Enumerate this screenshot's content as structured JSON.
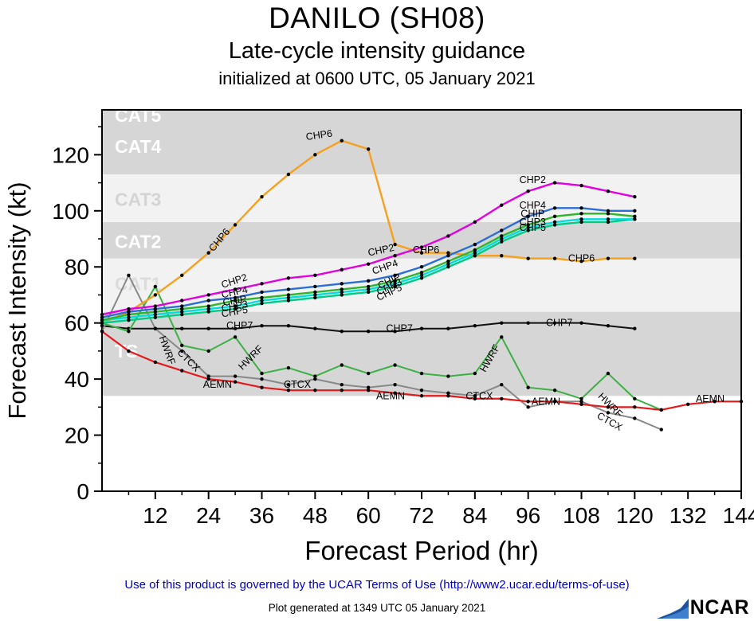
{
  "chart_data": {
    "type": "line",
    "title": "DANILO (SH08)",
    "subtitle": "Late-cycle intensity guidance",
    "init_line": "initialized at 0600 UTC, 05 January 2021",
    "xlabel": "Forecast Period (hr)",
    "ylabel": "Forecast Intensity (kt)",
    "xlim": [
      0,
      144
    ],
    "ylim": [
      0,
      136
    ],
    "xticks": [
      12,
      24,
      36,
      48,
      60,
      72,
      84,
      96,
      108,
      120,
      132,
      144
    ],
    "yticks": [
      0,
      20,
      40,
      60,
      80,
      100,
      120
    ],
    "x_minor_step": 6,
    "y_minor_step": 10,
    "legend": "none",
    "grid": false,
    "bands": [
      {
        "label": "TS",
        "from": 34,
        "to": 64,
        "fill": "#d6d6d6",
        "label_color": "#ffffff",
        "label_y": 50
      },
      {
        "label": "CAT1",
        "from": 64,
        "to": 83,
        "fill": "#f2f2f2",
        "label_color": "#dcdcdc",
        "label_y": 74
      },
      {
        "label": "CAT2",
        "from": 83,
        "to": 96,
        "fill": "#d6d6d6",
        "label_color": "#ffffff",
        "label_y": 89
      },
      {
        "label": "CAT3",
        "from": 96,
        "to": 113,
        "fill": "#f2f2f2",
        "label_color": "#d4d4d4",
        "label_y": 104
      },
      {
        "label": "CAT4",
        "from": 113,
        "to": 136,
        "fill": "#d6d6d6",
        "label_color": "#ffffff",
        "label_y": 123
      },
      {
        "label": "CAT5",
        "from": 136,
        "to": 136,
        "fill": "#d6d6d6",
        "label_color": "#ffffff",
        "label_y": 134
      }
    ],
    "series": [
      {
        "name": "CHP7",
        "color": "#111111",
        "width": 2,
        "x": [
          0,
          6,
          12,
          18,
          24,
          30,
          36,
          42,
          48,
          54,
          60,
          66,
          72,
          78,
          84,
          90,
          96,
          102,
          108,
          114,
          120
        ],
        "y": [
          59,
          58,
          58,
          58,
          58,
          58,
          59,
          59,
          58,
          57,
          57,
          57,
          58,
          58,
          59,
          60,
          60,
          60,
          60,
          59,
          58
        ],
        "labels": [
          {
            "x": 31,
            "y": 59,
            "rot": 0
          },
          {
            "x": 67,
            "y": 58,
            "rot": 0
          },
          {
            "x": 103,
            "y": 60,
            "rot": 0
          }
        ]
      },
      {
        "name": "CTCX",
        "color": "#888888",
        "width": 2,
        "x": [
          0,
          6,
          12,
          18,
          24,
          30,
          36,
          42,
          48,
          54,
          60,
          66,
          72,
          78,
          84,
          90,
          96,
          102,
          108,
          114,
          120,
          126
        ],
        "y": [
          57,
          77,
          58,
          50,
          41,
          41,
          40,
          38,
          40,
          38,
          37,
          38,
          36,
          35,
          34,
          38,
          30,
          32,
          32,
          28,
          26,
          22
        ],
        "labels": [
          {
            "x": 19,
            "y": 47,
            "rot": 45
          },
          {
            "x": 44,
            "y": 38,
            "rot": 0
          },
          {
            "x": 85,
            "y": 34,
            "rot": 0
          },
          {
            "x": 114,
            "y": 25,
            "rot": 30
          }
        ]
      },
      {
        "name": "HWRF",
        "color": "#3cb043",
        "width": 2,
        "x": [
          0,
          6,
          12,
          18,
          24,
          30,
          36,
          42,
          48,
          54,
          60,
          66,
          72,
          78,
          84,
          90,
          96,
          102,
          108,
          114,
          120,
          126
        ],
        "y": [
          60,
          57,
          73,
          52,
          50,
          55,
          42,
          44,
          41,
          45,
          42,
          45,
          42,
          41,
          42,
          55,
          37,
          36,
          33,
          42,
          33,
          29
        ],
        "labels": [
          {
            "x": 14,
            "y": 51,
            "rot": 70
          },
          {
            "x": 34,
            "y": 48,
            "rot": -45
          },
          {
            "x": 88,
            "y": 48,
            "rot": -60
          },
          {
            "x": 114,
            "y": 31,
            "rot": 45
          }
        ]
      },
      {
        "name": "AEMN",
        "color": "#e31a1c",
        "width": 2.2,
        "x": [
          0,
          6,
          12,
          18,
          24,
          30,
          36,
          42,
          48,
          54,
          60,
          66,
          72,
          78,
          84,
          90,
          96,
          102,
          108,
          114,
          120,
          126,
          132,
          138,
          144
        ],
        "y": [
          57,
          50,
          46,
          43,
          40,
          39,
          37,
          36,
          36,
          36,
          36,
          35,
          34,
          34,
          33,
          33,
          32,
          32,
          31,
          30,
          30,
          29,
          31,
          32,
          32
        ],
        "labels": [
          {
            "x": 26,
            "y": 38,
            "rot": 0
          },
          {
            "x": 65,
            "y": 34,
            "rot": 0
          },
          {
            "x": 100,
            "y": 32,
            "rot": 0
          },
          {
            "x": 137,
            "y": 33,
            "rot": 0
          }
        ]
      },
      {
        "name": "CHP6",
        "color": "#f5a01e",
        "width": 2.4,
        "x": [
          0,
          6,
          12,
          18,
          24,
          30,
          36,
          42,
          48,
          54,
          60,
          66,
          72,
          78,
          84,
          90,
          96,
          102,
          108,
          114,
          120
        ],
        "y": [
          60,
          64,
          70,
          77,
          85,
          95,
          105,
          113,
          120,
          125,
          122,
          88,
          85,
          85,
          84,
          84,
          83,
          83,
          82,
          83,
          83
        ],
        "labels": [
          {
            "x": 27,
            "y": 90,
            "rot": -50
          },
          {
            "x": 49,
            "y": 127,
            "rot": -8
          },
          {
            "x": 73,
            "y": 86,
            "rot": 0
          },
          {
            "x": 108,
            "y": 83,
            "rot": 0
          }
        ]
      },
      {
        "name": "CHP5",
        "color": "#00cc88",
        "width": 2.4,
        "x": [
          0,
          6,
          12,
          18,
          24,
          30,
          36,
          42,
          48,
          54,
          60,
          66,
          72,
          78,
          84,
          90,
          96,
          102,
          108,
          114,
          120
        ],
        "y": [
          60,
          61,
          62,
          63,
          64,
          65,
          67,
          68,
          69,
          70,
          71,
          73,
          76,
          80,
          84,
          89,
          93,
          95,
          96,
          96,
          97
        ],
        "labels": [
          {
            "x": 30,
            "y": 64,
            "rot": -10
          },
          {
            "x": 65,
            "y": 71,
            "rot": -25
          },
          {
            "x": 97,
            "y": 94,
            "rot": 0
          }
        ]
      },
      {
        "name": "CHP3",
        "color": "#00dddd",
        "width": 2.4,
        "x": [
          0,
          6,
          12,
          18,
          24,
          30,
          36,
          42,
          48,
          54,
          60,
          66,
          72,
          78,
          84,
          90,
          96,
          102,
          108,
          114,
          120
        ],
        "y": [
          61,
          62,
          63,
          64,
          65,
          66,
          68,
          69,
          70,
          71,
          72,
          74,
          77,
          81,
          85,
          90,
          94,
          96,
          97,
          97,
          97
        ],
        "labels": [
          {
            "x": 30,
            "y": 66,
            "rot": -10
          },
          {
            "x": 65,
            "y": 73,
            "rot": -25
          },
          {
            "x": 97,
            "y": 96,
            "rot": 0
          }
        ]
      },
      {
        "name": "CHIP",
        "color": "#2db52d",
        "width": 2.4,
        "x": [
          0,
          6,
          12,
          18,
          24,
          30,
          36,
          42,
          48,
          54,
          60,
          66,
          72,
          78,
          84,
          90,
          96,
          102,
          108,
          114,
          120
        ],
        "y": [
          61,
          63,
          64,
          65,
          66,
          68,
          69,
          70,
          71,
          72,
          73,
          75,
          78,
          82,
          86,
          91,
          95,
          98,
          99,
          99,
          98
        ],
        "labels": [
          {
            "x": 30,
            "y": 68,
            "rot": -10
          },
          {
            "x": 65,
            "y": 75,
            "rot": -25
          },
          {
            "x": 97,
            "y": 99,
            "rot": 0
          }
        ]
      },
      {
        "name": "CHP4",
        "color": "#2b6fd4",
        "width": 2.4,
        "x": [
          0,
          6,
          12,
          18,
          24,
          30,
          36,
          42,
          48,
          54,
          60,
          66,
          72,
          78,
          84,
          90,
          96,
          102,
          108,
          114,
          120
        ],
        "y": [
          62,
          64,
          65,
          66,
          68,
          69,
          71,
          72,
          73,
          74,
          75,
          77,
          80,
          84,
          88,
          93,
          98,
          101,
          101,
          100,
          100
        ],
        "labels": [
          {
            "x": 30,
            "y": 71,
            "rot": -12
          },
          {
            "x": 64,
            "y": 80,
            "rot": -20
          },
          {
            "x": 97,
            "y": 102,
            "rot": 0
          }
        ]
      },
      {
        "name": "CHP2",
        "color": "#e000e0",
        "width": 2.4,
        "x": [
          0,
          6,
          12,
          18,
          24,
          30,
          36,
          42,
          48,
          54,
          60,
          66,
          72,
          78,
          84,
          90,
          96,
          102,
          108,
          114,
          120
        ],
        "y": [
          63,
          65,
          66,
          68,
          70,
          72,
          74,
          76,
          77,
          79,
          81,
          84,
          87,
          91,
          96,
          102,
          107,
          110,
          109,
          107,
          105
        ],
        "labels": [
          {
            "x": 30,
            "y": 75,
            "rot": -18
          },
          {
            "x": 63,
            "y": 86,
            "rot": -12
          },
          {
            "x": 97,
            "y": 111,
            "rot": 0
          }
        ]
      }
    ]
  },
  "footer": {
    "terms": "Use of this product is governed by the UCAR Terms of Use (http://www2.ucar.edu/terms-of-use)",
    "generated": "Plot generated at 1349 UTC   05 January 2021",
    "logo_text": "NCAR"
  }
}
